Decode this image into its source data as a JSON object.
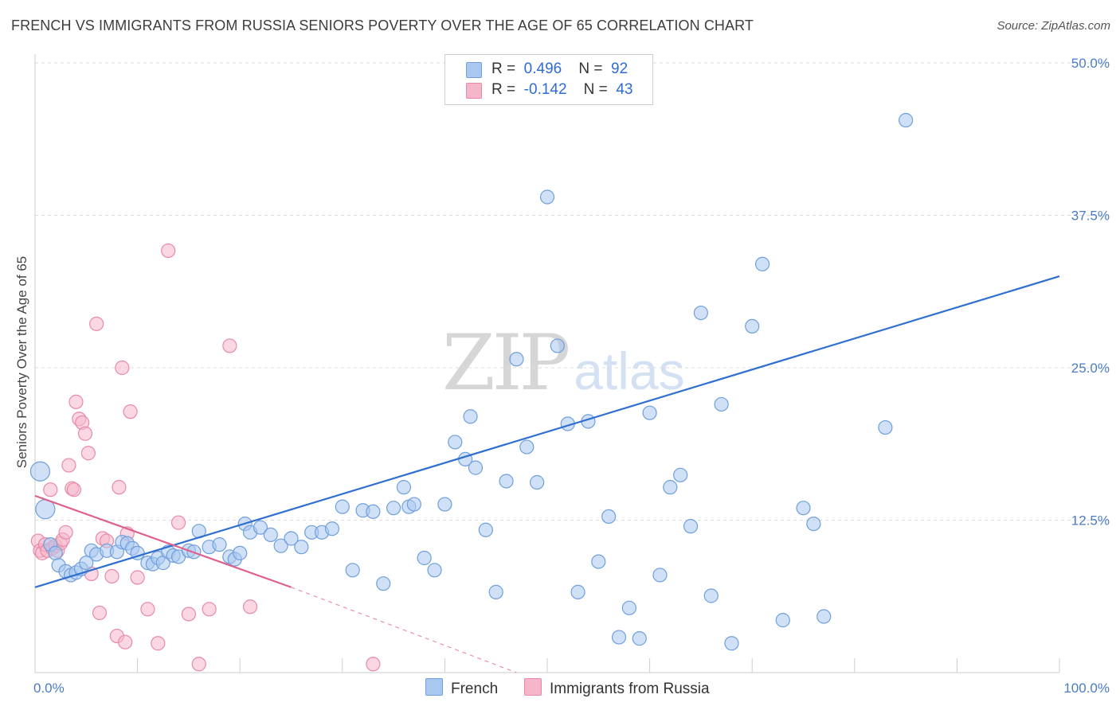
{
  "title": "FRENCH VS IMMIGRANTS FROM RUSSIA SENIORS POVERTY OVER THE AGE OF 65 CORRELATION CHART",
  "source": "Source: ZipAtlas.com",
  "watermark": {
    "zip": "ZIP",
    "atlas": "atlas"
  },
  "legend": {
    "rows": [
      {
        "r_label": "R =",
        "r_value": "0.496",
        "n_label": "N =",
        "n_value": "92"
      },
      {
        "r_label": "R =",
        "r_value": "-0.142",
        "n_label": "N =",
        "n_value": "43"
      }
    ]
  },
  "bottom_legend": {
    "french": "French",
    "russia": "Immigrants from Russia"
  },
  "colors": {
    "french_fill": "#a9c8f0",
    "french_stroke": "#6f9fdc",
    "french_line": "#2e6fd0",
    "russia_fill": "#f6b6ca",
    "russia_stroke": "#e889a8",
    "russia_line": "#e0608d",
    "grid": "#dddddd",
    "tick_label": "#4a7cc7"
  },
  "chart_data": {
    "type": "scatter",
    "title": "FRENCH VS IMMIGRANTS FROM RUSSIA SENIORS POVERTY OVER THE AGE OF 65 CORRELATION CHART",
    "xlabel": "",
    "ylabel": "Seniors Poverty Over the Age of 65",
    "xlim": [
      0,
      100
    ],
    "ylim": [
      0,
      50
    ],
    "x_tick_labels": [
      "0.0%",
      "100.0%"
    ],
    "y_ticks": [
      12.5,
      25.0,
      37.5,
      50.0
    ],
    "y_tick_labels": [
      "12.5%",
      "25.0%",
      "37.5%",
      "50.0%"
    ],
    "series": [
      {
        "name": "French",
        "R": 0.496,
        "N": 92,
        "trend": {
          "x": [
            0,
            100
          ],
          "y": [
            7.0,
            32.5
          ],
          "style": "solid"
        },
        "points": [
          [
            0.5,
            16.5
          ],
          [
            1,
            13.4
          ],
          [
            1.5,
            10.5
          ],
          [
            2,
            9.8
          ],
          [
            2.3,
            8.8
          ],
          [
            3,
            8.3
          ],
          [
            3.5,
            8.0
          ],
          [
            4,
            8.2
          ],
          [
            4.5,
            8.5
          ],
          [
            5,
            9.0
          ],
          [
            5.5,
            10.0
          ],
          [
            6,
            9.7
          ],
          [
            7,
            10.0
          ],
          [
            8,
            9.9
          ],
          [
            8.5,
            10.7
          ],
          [
            9,
            10.6
          ],
          [
            9.5,
            10.2
          ],
          [
            10,
            9.8
          ],
          [
            11,
            9.0
          ],
          [
            11.5,
            8.9
          ],
          [
            12,
            9.4
          ],
          [
            12.5,
            9.0
          ],
          [
            13,
            9.9
          ],
          [
            13.5,
            9.6
          ],
          [
            14,
            9.5
          ],
          [
            15,
            10.0
          ],
          [
            15.5,
            9.9
          ],
          [
            16,
            11.6
          ],
          [
            17,
            10.3
          ],
          [
            18,
            10.5
          ],
          [
            19,
            9.5
          ],
          [
            19.5,
            9.3
          ],
          [
            20,
            9.8
          ],
          [
            20.5,
            12.2
          ],
          [
            21,
            11.5
          ],
          [
            22,
            11.9
          ],
          [
            23,
            11.3
          ],
          [
            24,
            10.4
          ],
          [
            25,
            11.0
          ],
          [
            26,
            10.3
          ],
          [
            27,
            11.5
          ],
          [
            28,
            11.5
          ],
          [
            29,
            11.8
          ],
          [
            30,
            13.6
          ],
          [
            31,
            8.4
          ],
          [
            32,
            13.3
          ],
          [
            33,
            13.2
          ],
          [
            34,
            7.3
          ],
          [
            35,
            13.5
          ],
          [
            36,
            15.2
          ],
          [
            36.5,
            13.6
          ],
          [
            37,
            13.8
          ],
          [
            38,
            9.4
          ],
          [
            39,
            8.4
          ],
          [
            40,
            13.8
          ],
          [
            41,
            18.9
          ],
          [
            42,
            17.5
          ],
          [
            42.5,
            21.0
          ],
          [
            43,
            16.8
          ],
          [
            44,
            11.7
          ],
          [
            45,
            6.6
          ],
          [
            46,
            15.7
          ],
          [
            47,
            25.7
          ],
          [
            48,
            18.5
          ],
          [
            49,
            15.6
          ],
          [
            50,
            39.0
          ],
          [
            51,
            26.8
          ],
          [
            52,
            20.4
          ],
          [
            53,
            6.6
          ],
          [
            54,
            20.6
          ],
          [
            55,
            9.1
          ],
          [
            56,
            12.8
          ],
          [
            57,
            2.9
          ],
          [
            58,
            5.3
          ],
          [
            59,
            2.8
          ],
          [
            60,
            21.3
          ],
          [
            61,
            8.0
          ],
          [
            62,
            15.2
          ],
          [
            63,
            16.2
          ],
          [
            64,
            12.0
          ],
          [
            65,
            29.5
          ],
          [
            66,
            6.3
          ],
          [
            67,
            22.0
          ],
          [
            68,
            2.4
          ],
          [
            70,
            28.4
          ],
          [
            71,
            33.5
          ],
          [
            73,
            4.3
          ],
          [
            75,
            13.5
          ],
          [
            76,
            12.2
          ],
          [
            77,
            4.6
          ],
          [
            83,
            20.1
          ],
          [
            85,
            45.3
          ]
        ]
      },
      {
        "name": "Immigrants from Russia",
        "R": -0.142,
        "N": 43,
        "trend": {
          "x": [
            0,
            25
          ],
          "y": [
            14.5,
            7.0
          ],
          "style": "solid",
          "dashed_to": {
            "x": 47,
            "y": 0
          }
        },
        "points": [
          [
            0.3,
            10.8
          ],
          [
            0.5,
            10.0
          ],
          [
            0.7,
            9.8
          ],
          [
            1,
            10.5
          ],
          [
            1.2,
            10.0
          ],
          [
            1.5,
            15.0
          ],
          [
            1.7,
            10.2
          ],
          [
            2,
            10.4
          ],
          [
            2.2,
            10.0
          ],
          [
            2.5,
            10.6
          ],
          [
            2.7,
            10.9
          ],
          [
            3,
            11.5
          ],
          [
            3.3,
            17.0
          ],
          [
            3.6,
            15.1
          ],
          [
            3.8,
            15.0
          ],
          [
            4,
            22.2
          ],
          [
            4.3,
            20.8
          ],
          [
            4.6,
            20.5
          ],
          [
            4.9,
            19.6
          ],
          [
            5.2,
            18.0
          ],
          [
            5.5,
            8.1
          ],
          [
            6,
            28.6
          ],
          [
            6.3,
            4.9
          ],
          [
            6.6,
            11.0
          ],
          [
            7,
            10.8
          ],
          [
            7.5,
            7.9
          ],
          [
            8,
            3.0
          ],
          [
            8.2,
            15.2
          ],
          [
            8.5,
            25.0
          ],
          [
            8.8,
            2.5
          ],
          [
            9,
            11.4
          ],
          [
            9.3,
            21.4
          ],
          [
            10,
            7.8
          ],
          [
            11,
            5.2
          ],
          [
            12,
            2.4
          ],
          [
            13,
            34.6
          ],
          [
            14,
            12.3
          ],
          [
            15,
            4.8
          ],
          [
            16,
            0.7
          ],
          [
            17,
            5.2
          ],
          [
            19,
            26.8
          ],
          [
            21,
            5.4
          ],
          [
            33,
            0.7
          ]
        ]
      }
    ]
  }
}
